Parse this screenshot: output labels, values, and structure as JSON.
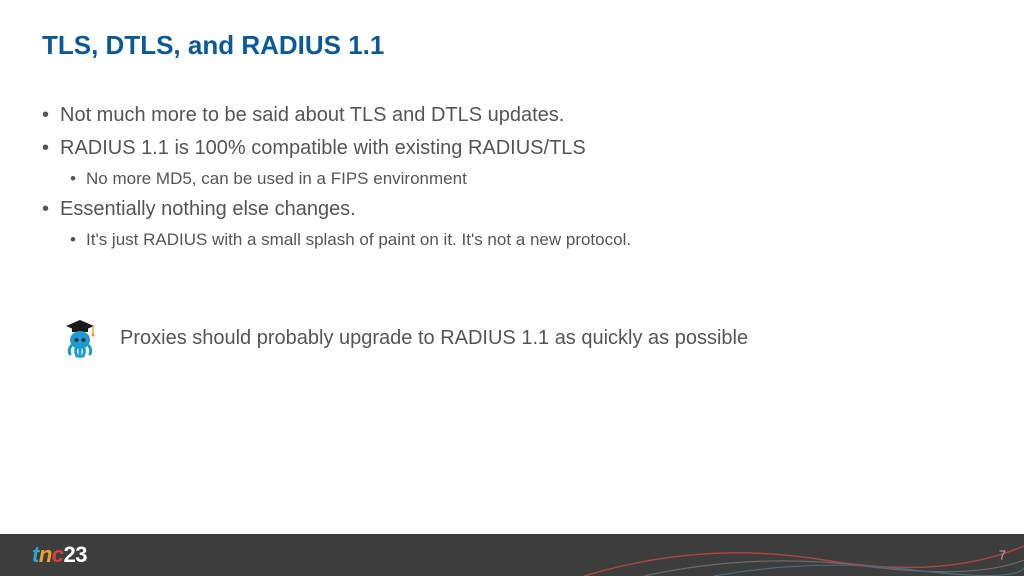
{
  "title": "TLS, DTLS, and RADIUS 1.1",
  "title_color": "#0a5a9a",
  "text_color": "#555555",
  "background_color": "#ffffff",
  "bullets": [
    {
      "text": "Not much more to be said about TLS and DTLS updates.",
      "sub": []
    },
    {
      "text": "RADIUS 1.1 is 100% compatible with existing RADIUS/TLS",
      "sub": [
        "No more MD5, can be used in a FIPS environment"
      ]
    },
    {
      "text": "Essentially nothing else changes.",
      "sub": [
        "It's just RADIUS with a small splash of paint on it.  It's not a new protocol."
      ]
    }
  ],
  "note": "Proxies should probably upgrade to RADIUS 1.1 as quickly as possible",
  "mascot": {
    "name": "graduate-octopus-icon",
    "body_color": "#1d9bd1",
    "hat_color": "#1a1a1a",
    "tassel_color": "#f0a030",
    "eye_color": "#1a1a1a"
  },
  "footer": {
    "bg_color": "#3d3d3d",
    "logo": {
      "t": "t",
      "n": "n",
      "c": "c",
      "year": "23"
    },
    "page_number": "7",
    "deco_colors": {
      "red": "#b04545",
      "gray": "#6a6a6a",
      "blue": "#4a6a7a"
    }
  }
}
